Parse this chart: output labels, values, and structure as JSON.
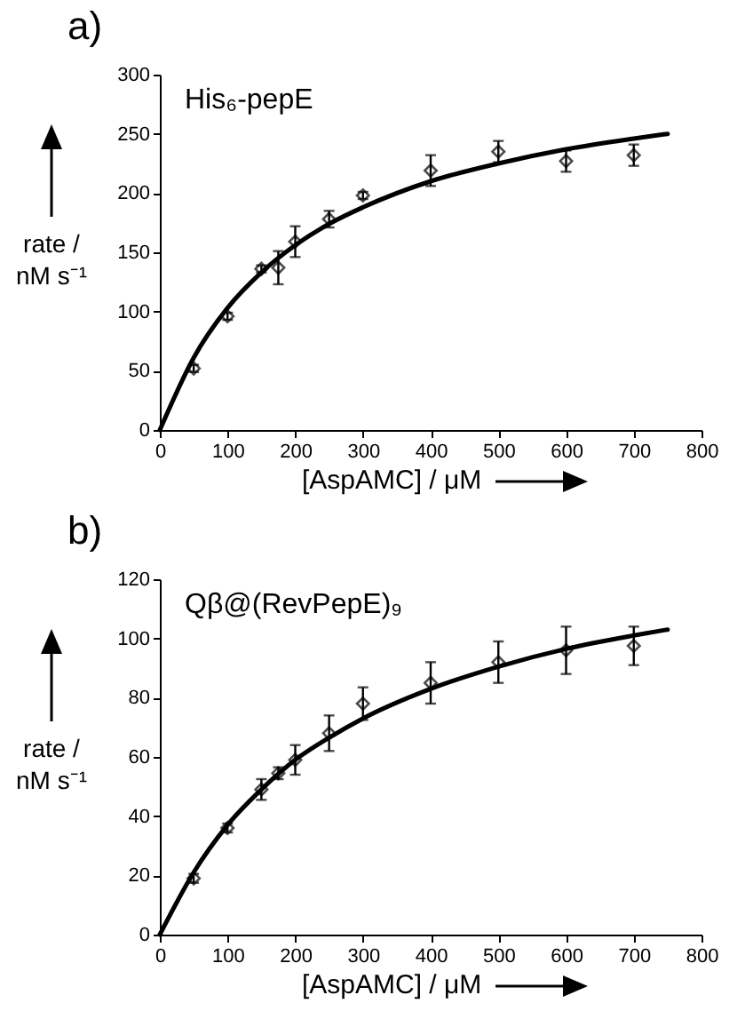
{
  "chart_data": [
    {
      "type": "scatter",
      "title": "a)",
      "annotations": [
        "His₆-pepE"
      ],
      "xlabel": "[AspAMC] / μM",
      "ylabel": "rate / nM s⁻¹",
      "xlim": [
        0,
        800
      ],
      "xticks": [
        0,
        100,
        200,
        300,
        400,
        500,
        600,
        700,
        800
      ],
      "ylim": [
        0,
        300
      ],
      "yticks": [
        0,
        50,
        100,
        150,
        200,
        250,
        300
      ],
      "grid": false,
      "series": [
        {
          "type": "scatter",
          "marker": "diamond",
          "color": "#000000",
          "x": [
            50,
            100,
            150,
            175,
            200,
            250,
            300,
            400,
            500,
            600,
            700
          ],
          "values": [
            52,
            96,
            136,
            137,
            159,
            178,
            198,
            219,
            235,
            227,
            232
          ],
          "errors": [
            3,
            3,
            3,
            14,
            13,
            7,
            3,
            13,
            9,
            9,
            9
          ]
        },
        {
          "type": "line",
          "color": "#000000",
          "x": [
            0,
            50,
            100,
            150,
            200,
            250,
            300,
            400,
            500,
            600,
            700,
            750
          ],
          "values": [
            0,
            61,
            103,
            133,
            156,
            174,
            188,
            210,
            225,
            237,
            246,
            250
          ]
        }
      ]
    },
    {
      "type": "scatter",
      "title": "b)",
      "annotations": [
        "Qβ@(RevPepE)₉"
      ],
      "xlabel": "[AspAMC] / μM",
      "ylabel": "rate / nM s⁻¹",
      "xlim": [
        0,
        800
      ],
      "xticks": [
        0,
        100,
        200,
        300,
        400,
        500,
        600,
        700,
        800
      ],
      "ylim": [
        0,
        120
      ],
      "yticks": [
        0,
        20,
        40,
        60,
        80,
        100,
        120
      ],
      "grid": false,
      "series": [
        {
          "type": "scatter",
          "marker": "diamond",
          "color": "#000000",
          "x": [
            50,
            100,
            150,
            175,
            200,
            250,
            300,
            400,
            500,
            600,
            700
          ],
          "values": [
            19,
            36,
            49,
            54.5,
            59,
            68,
            78,
            85,
            92,
            96,
            97.5
          ],
          "errors": [
            1.5,
            1.5,
            3.5,
            2,
            5,
            6,
            5.5,
            7,
            7,
            8,
            6.5
          ]
        },
        {
          "type": "line",
          "color": "#000000",
          "x": [
            0,
            50,
            100,
            150,
            200,
            250,
            300,
            400,
            500,
            600,
            700,
            750
          ],
          "values": [
            0,
            21,
            37,
            49,
            59,
            66.5,
            73,
            83,
            90.5,
            96.5,
            101,
            103
          ]
        }
      ]
    }
  ]
}
